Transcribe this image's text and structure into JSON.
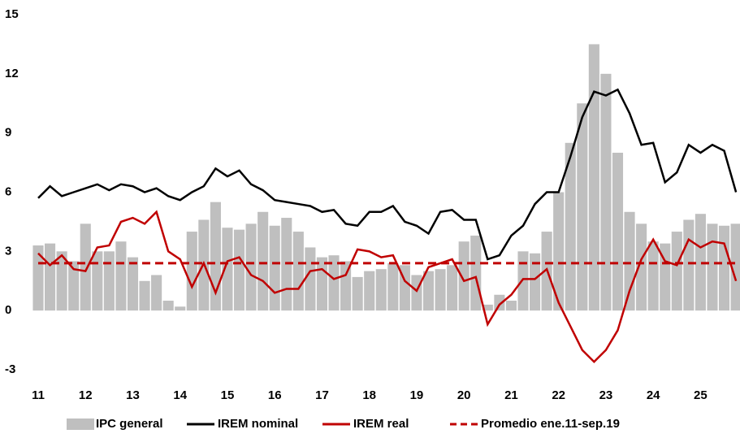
{
  "chart_data": {
    "type": "combo",
    "x": [
      11,
      11.25,
      11.5,
      11.75,
      12,
      12.25,
      12.5,
      12.75,
      13,
      13.25,
      13.5,
      13.75,
      14,
      14.25,
      14.5,
      14.75,
      15,
      15.25,
      15.5,
      15.75,
      16,
      16.25,
      16.5,
      16.75,
      17,
      17.25,
      17.5,
      17.75,
      18,
      18.25,
      18.5,
      18.75,
      19,
      19.25,
      19.5,
      19.75,
      20,
      20.25,
      20.5,
      20.75,
      21,
      21.25,
      21.5,
      21.75,
      22,
      22.25,
      22.5,
      22.75,
      23,
      23.25,
      23.5,
      23.75,
      24,
      24.25,
      24.5,
      24.75,
      25,
      25.25,
      25.5,
      25.75
    ],
    "xlim": [
      11,
      25.8
    ],
    "xticks": [
      11,
      12,
      13,
      14,
      15,
      16,
      17,
      18,
      19,
      20,
      21,
      22,
      23,
      24,
      25
    ],
    "ylim": [
      -3,
      15
    ],
    "yticks": [
      -3,
      0,
      3,
      6,
      9,
      12,
      15
    ],
    "series": [
      {
        "name": "IPC general",
        "type": "bar",
        "color": "#bfbfbf",
        "values": [
          3.3,
          3.4,
          3.0,
          2.5,
          4.4,
          3.0,
          3.0,
          3.5,
          2.7,
          1.5,
          1.8,
          0.5,
          0.2,
          4.0,
          4.6,
          5.5,
          4.2,
          4.1,
          4.4,
          5.0,
          4.3,
          4.7,
          4.0,
          3.2,
          2.7,
          2.8,
          2.5,
          1.7,
          2.0,
          2.1,
          2.4,
          2.3,
          1.8,
          2.0,
          2.1,
          2.3,
          3.5,
          3.8,
          0.3,
          0.8,
          0.5,
          3.0,
          2.9,
          4.0,
          6.0,
          8.5,
          10.5,
          13.5,
          12.0,
          8.0,
          5.0,
          4.4,
          3.5,
          3.4,
          4.0,
          4.6,
          4.9,
          4.4,
          4.3,
          4.4
        ]
      },
      {
        "name": "IREM nominal",
        "type": "line",
        "color": "#000000",
        "values": [
          5.7,
          6.3,
          5.8,
          6.0,
          6.2,
          6.4,
          6.1,
          6.4,
          6.3,
          6.0,
          6.2,
          5.8,
          5.6,
          6.0,
          6.3,
          7.2,
          6.8,
          7.1,
          6.4,
          6.1,
          5.6,
          5.5,
          5.4,
          5.3,
          5.0,
          5.1,
          4.4,
          4.3,
          5.0,
          5.0,
          5.3,
          4.5,
          4.3,
          3.9,
          5.0,
          5.1,
          4.6,
          4.6,
          2.6,
          2.8,
          3.8,
          4.3,
          5.4,
          6.0,
          6.0,
          7.8,
          9.8,
          11.1,
          10.9,
          11.2,
          10.0,
          8.4,
          8.5,
          6.5,
          7.0,
          8.4,
          8.0,
          8.4,
          8.1,
          6.0
        ]
      },
      {
        "name": "IREM real",
        "type": "line",
        "color": "#c00000",
        "values": [
          2.9,
          2.3,
          2.8,
          2.1,
          2.0,
          3.2,
          3.3,
          4.5,
          4.7,
          4.4,
          5.0,
          3.0,
          2.6,
          1.2,
          2.4,
          0.9,
          2.5,
          2.7,
          1.8,
          1.5,
          0.9,
          1.1,
          1.1,
          2.0,
          2.1,
          1.6,
          1.8,
          3.1,
          3.0,
          2.7,
          2.8,
          1.5,
          1.0,
          2.2,
          2.4,
          2.6,
          1.5,
          1.7,
          -0.7,
          0.3,
          0.8,
          1.6,
          1.6,
          2.1,
          0.4,
          -0.8,
          -2.0,
          -2.6,
          -2.0,
          -1.0,
          1.0,
          2.6,
          3.6,
          2.5,
          2.3,
          3.6,
          3.2,
          3.5,
          3.4,
          1.5
        ]
      },
      {
        "name": "Promedio ene.11-sep.19",
        "type": "hline",
        "color": "#c00000",
        "dashed": true,
        "value": 2.4
      }
    ]
  }
}
